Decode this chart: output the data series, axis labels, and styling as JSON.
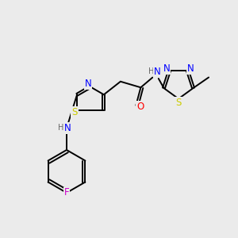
{
  "background_color": "#ebebeb",
  "bond_color": "#000000",
  "atom_colors": {
    "N": "#0000ff",
    "S": "#cccc00",
    "O": "#ff0000",
    "F": "#cc00cc",
    "H": "#666666",
    "C": "#000000"
  },
  "font_size": 8.5,
  "lw": 1.4,
  "fig_size": [
    3.0,
    3.0
  ],
  "dpi": 100
}
